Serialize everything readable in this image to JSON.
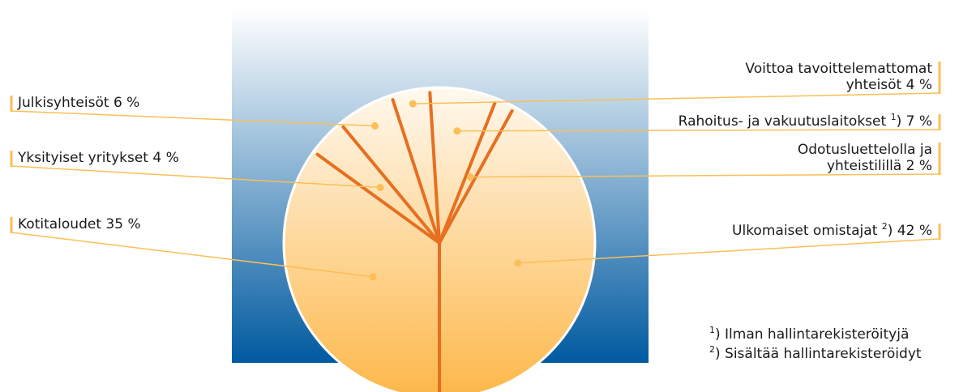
{
  "chart_data": {
    "type": "pie",
    "colors": {
      "background_top": "#ffffff",
      "background_bottom": "#005aa0",
      "pie_top": "#fff9ef",
      "pie_bottom": "#fdb748",
      "divider": "#e66f21",
      "leader": "#fbbf57"
    },
    "slices": [
      {
        "name": "Ulkomaiset omistajat",
        "note": "2",
        "value": 42,
        "label": "42 %",
        "side": "right"
      },
      {
        "name": "Odotusluettelolla ja yhteistilillä",
        "lines": [
          "Odotusluettelolla ja",
          "yhteistilillä 2 %"
        ],
        "value": 2,
        "label": "2 %",
        "side": "right"
      },
      {
        "name": "Rahoitus- ja vakuutuslaitokset",
        "note": "1",
        "value": 7,
        "label": "7 %",
        "side": "right"
      },
      {
        "name": "Voittoa tavoittelemattomat yhteisöt",
        "lines": [
          "Voittoa tavoittelemattomat",
          "yhteisöt 4 %"
        ],
        "value": 4,
        "label": "4 %",
        "side": "right"
      },
      {
        "name": "Julkisyhteisöt",
        "value": 6,
        "label": "6 %",
        "side": "left"
      },
      {
        "name": "Yksityiset yritykset",
        "value": 4,
        "label": "4 %",
        "side": "left"
      },
      {
        "name": "Kotitaloudet",
        "value": 35,
        "label": "35 %",
        "side": "left"
      }
    ],
    "footnotes": [
      {
        "mark": "1",
        "text": ") Ilman hallintarekisteröityjä"
      },
      {
        "mark": "2",
        "text": ") Sisältää hallintarekisteröidyt"
      }
    ]
  }
}
